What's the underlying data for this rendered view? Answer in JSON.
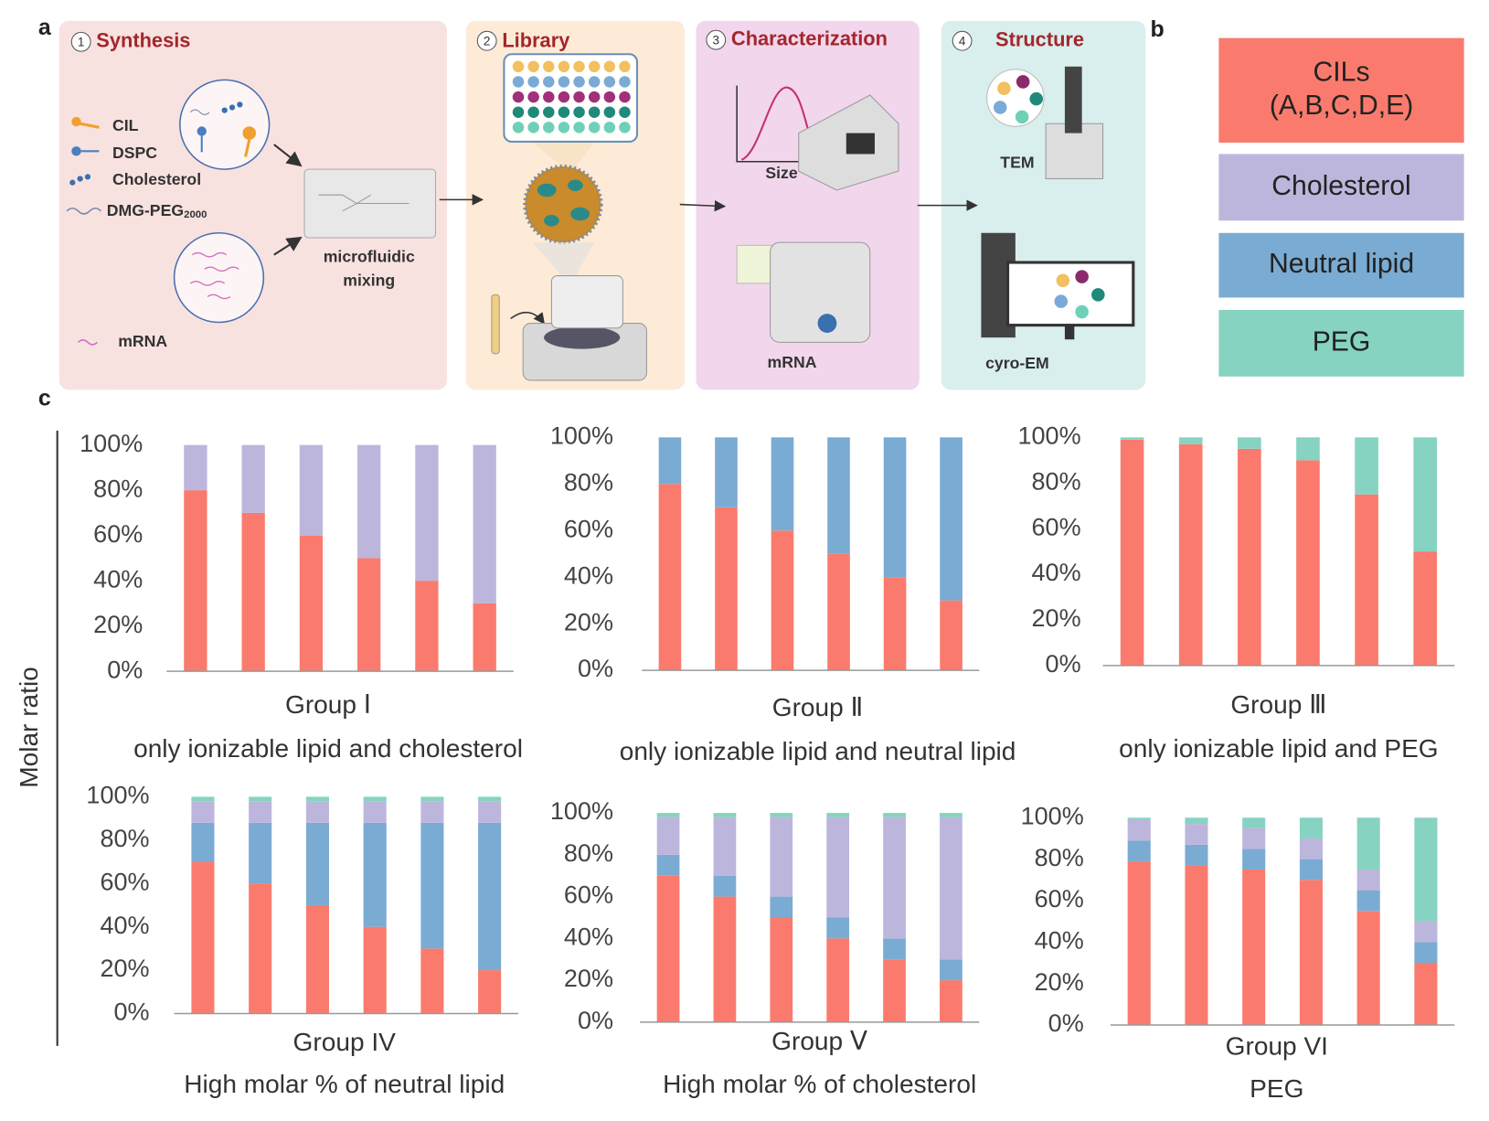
{
  "panel_labels": [
    "a",
    "b",
    "c"
  ],
  "workflow": {
    "steps": [
      {
        "number": "1",
        "title": "Synthesis"
      },
      {
        "number": "2",
        "title": "Library"
      },
      {
        "number": "3",
        "title": "Characterization"
      },
      {
        "number": "4",
        "title": "Structure"
      }
    ],
    "components": [
      {
        "text": "CIL"
      },
      {
        "text": "DSPC"
      },
      {
        "text": "Cholesterol"
      },
      {
        "text": "DMG-PEG",
        "subscript": "2000"
      }
    ],
    "mrna": "mRNA",
    "mixer": [
      "microfluidic",
      "mixing"
    ],
    "size": "Size",
    "mrna_assay": "mRNA",
    "tem": "TEM",
    "cryo_em": "cyro-EM"
  },
  "molar_ratio_label": "Molar ratio",
  "chart_data": [
    {
      "type": "bar",
      "stacked": true,
      "title": "Group Ⅰ",
      "subtitle": "only ionizable lipid and cholesterol",
      "categories": [
        null,
        null,
        null,
        null,
        null,
        null
      ],
      "series": [
        {
          "name": "CILs\n(A,B,C,D,E)",
          "color": "#fa7b6d",
          "values": [
            80,
            70,
            60,
            50,
            40,
            30
          ]
        },
        {
          "name": "Cholesterol",
          "color": "#bdb6dc",
          "values": [
            20,
            30,
            40,
            50,
            60,
            70
          ]
        }
      ],
      "ylim": [
        0,
        100
      ],
      "yticks": [
        {
          "value": 0,
          "label": "0%"
        },
        {
          "value": 20,
          "label": "20%"
        },
        {
          "value": 40,
          "label": "40%"
        },
        {
          "value": 60,
          "label": "60%"
        },
        {
          "value": 80,
          "label": "80%"
        },
        {
          "value": 100,
          "label": "100%"
        }
      ]
    },
    {
      "type": "bar",
      "stacked": true,
      "title": "Group Ⅱ",
      "subtitle": "only ionizable lipid and neutral lipid",
      "categories": [
        null,
        null,
        null,
        null,
        null,
        null
      ],
      "series": [
        {
          "name": "CILs\n(A,B,C,D,E)",
          "color": "#fa7b6d",
          "values": [
            80,
            70,
            60,
            50,
            40,
            30
          ]
        },
        {
          "name": "Neutral lipid",
          "color": "#7aabd3",
          "values": [
            20,
            30,
            40,
            50,
            60,
            70
          ]
        }
      ],
      "ylim": [
        0,
        100
      ],
      "yticks": [
        {
          "value": 0,
          "label": "0%"
        },
        {
          "value": 20,
          "label": "20%"
        },
        {
          "value": 40,
          "label": "40%"
        },
        {
          "value": 60,
          "label": "60%"
        },
        {
          "value": 80,
          "label": "80%"
        },
        {
          "value": 100,
          "label": "100%"
        }
      ]
    },
    {
      "type": "bar",
      "stacked": true,
      "title": "Group Ⅲ",
      "subtitle": "only ionizable lipid and PEG",
      "categories": [
        null,
        null,
        null,
        null,
        null,
        null
      ],
      "series": [
        {
          "name": "CILs\n(A,B,C,D,E)",
          "color": "#fa7b6d",
          "values": [
            99,
            97,
            95,
            90,
            75,
            50
          ]
        },
        {
          "name": "PEG",
          "color": "#86d3c1",
          "values": [
            1,
            3,
            5,
            10,
            25,
            50
          ]
        }
      ],
      "ylim": [
        0,
        100
      ],
      "yticks": [
        {
          "value": 0,
          "label": "0%"
        },
        {
          "value": 20,
          "label": "20%"
        },
        {
          "value": 40,
          "label": "40%"
        },
        {
          "value": 60,
          "label": "60%"
        },
        {
          "value": 80,
          "label": "80%"
        },
        {
          "value": 100,
          "label": "100%"
        }
      ]
    },
    {
      "type": "bar",
      "stacked": true,
      "title": "Group IV",
      "subtitle": "High molar % of neutral lipid",
      "categories": [
        null,
        null,
        null,
        null,
        null,
        null
      ],
      "series": [
        {
          "name": "CILs\n(A,B,C,D,E)",
          "color": "#fa7b6d",
          "values": [
            70,
            60,
            50,
            40,
            30,
            20
          ]
        },
        {
          "name": "Neutral lipid",
          "color": "#7aabd3",
          "values": [
            18,
            28,
            38,
            48,
            58,
            68
          ]
        },
        {
          "name": "Cholesterol",
          "color": "#bdb6dc",
          "values": [
            10,
            10,
            10,
            10,
            10,
            10
          ]
        },
        {
          "name": "PEG",
          "color": "#86d3c1",
          "values": [
            2,
            2,
            2,
            2,
            2,
            2
          ]
        }
      ],
      "ylim": [
        0,
        100
      ],
      "yticks": [
        {
          "value": 0,
          "label": "0%"
        },
        {
          "value": 20,
          "label": "20%"
        },
        {
          "value": 40,
          "label": "40%"
        },
        {
          "value": 60,
          "label": "60%"
        },
        {
          "value": 80,
          "label": "80%"
        },
        {
          "value": 100,
          "label": "100%"
        }
      ]
    },
    {
      "type": "bar",
      "stacked": true,
      "title": "Group Ⅴ",
      "subtitle": "High molar % of cholesterol",
      "categories": [
        null,
        null,
        null,
        null,
        null,
        null
      ],
      "series": [
        {
          "name": "CILs\n(A,B,C,D,E)",
          "color": "#fa7b6d",
          "values": [
            70,
            60,
            50,
            40,
            30,
            20
          ]
        },
        {
          "name": "Neutral lipid",
          "color": "#7aabd3",
          "values": [
            10,
            10,
            10,
            10,
            10,
            10
          ]
        },
        {
          "name": "Cholesterol",
          "color": "#bdb6dc",
          "values": [
            18,
            28,
            38,
            48,
            58,
            68
          ]
        },
        {
          "name": "PEG",
          "color": "#86d3c1",
          "values": [
            2,
            2,
            2,
            2,
            2,
            2
          ]
        }
      ],
      "ylim": [
        0,
        100
      ],
      "yticks": [
        {
          "value": 0,
          "label": "0%"
        },
        {
          "value": 20,
          "label": "20%"
        },
        {
          "value": 40,
          "label": "40%"
        },
        {
          "value": 60,
          "label": "60%"
        },
        {
          "value": 80,
          "label": "80%"
        },
        {
          "value": 100,
          "label": "100%"
        }
      ]
    },
    {
      "type": "bar",
      "stacked": true,
      "title": "Group VI",
      "subtitle": "PEG",
      "categories": [
        null,
        null,
        null,
        null,
        null,
        null
      ],
      "series": [
        {
          "name": "CILs\n(A,B,C,D,E)",
          "color": "#fa7b6d",
          "values": [
            79,
            77,
            75,
            70,
            55,
            30
          ]
        },
        {
          "name": "Neutral lipid",
          "color": "#7aabd3",
          "values": [
            10,
            10,
            10,
            10,
            10,
            10
          ]
        },
        {
          "name": "Cholesterol",
          "color": "#bdb6dc",
          "values": [
            10,
            10,
            10,
            10,
            10,
            10
          ]
        },
        {
          "name": "PEG",
          "color": "#86d3c1",
          "values": [
            1,
            3,
            5,
            10,
            25,
            50
          ]
        }
      ],
      "ylim": [
        0,
        100
      ],
      "yticks": [
        {
          "value": 0,
          "label": "0%"
        },
        {
          "value": 20,
          "label": "20%"
        },
        {
          "value": 40,
          "label": "40%"
        },
        {
          "value": 60,
          "label": "60%"
        },
        {
          "value": 80,
          "label": "80%"
        },
        {
          "value": 100,
          "label": "100%"
        }
      ]
    }
  ]
}
